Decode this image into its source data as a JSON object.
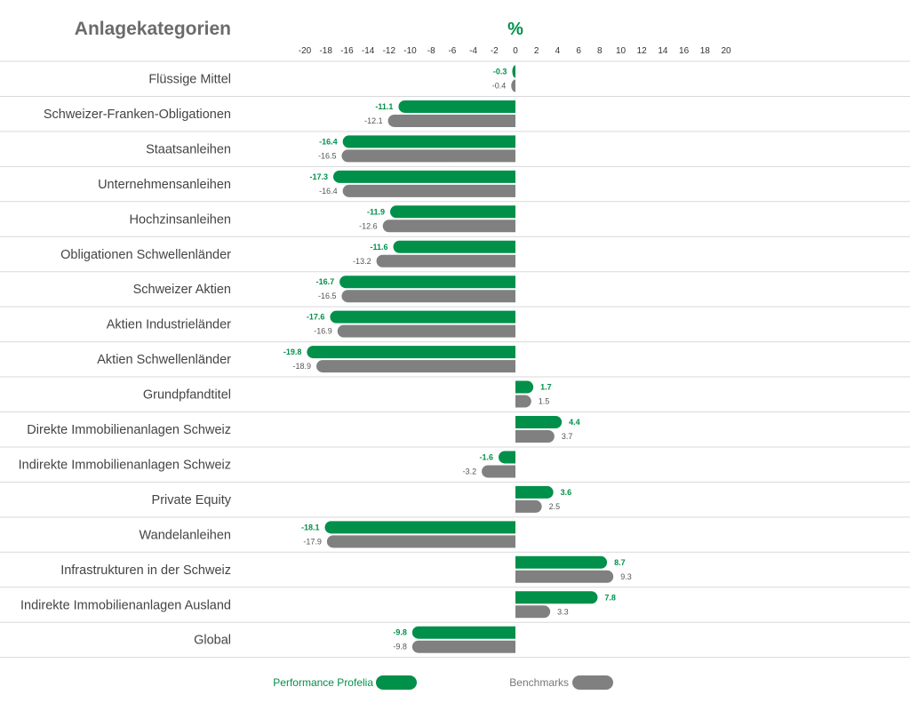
{
  "chart_data": {
    "type": "bar",
    "orientation": "horizontal",
    "title": "Anlagekategorien",
    "unit": "%",
    "xlim": [
      -20,
      20
    ],
    "xticks": [
      -20,
      -18,
      -16,
      -14,
      -12,
      -10,
      -8,
      -6,
      -4,
      -2,
      0,
      2,
      4,
      6,
      8,
      10,
      12,
      14,
      16,
      18,
      20
    ],
    "categories": [
      "Flüssige Mittel",
      "Schweizer-Franken-Obligationen",
      "Staatsanleihen",
      "Unternehmensanleihen",
      "Hochzinsanleihen",
      "Obligationen Schwellenländer",
      "Schweizer Aktien",
      "Aktien Industrieländer",
      "Aktien Schwellenländer",
      "Grundpfandtitel",
      "Direkte Immobilienanlagen Schweiz",
      "Indirekte Immobilienanlagen Schweiz",
      "Private Equity",
      "Wandelanleihen",
      "Infrastrukturen in der Schweiz",
      "Indirekte Immobilienanlagen Ausland",
      "Global"
    ],
    "series": [
      {
        "name": "Performance Profelia",
        "color": "#00904a",
        "values": [
          -0.3,
          -11.1,
          -16.4,
          -17.3,
          -11.9,
          -11.6,
          -16.7,
          -17.6,
          -19.8,
          1.7,
          4.4,
          -1.6,
          3.6,
          -18.1,
          8.7,
          7.8,
          -9.8
        ],
        "labels": [
          "-0.3",
          "-11.1",
          "-16.4",
          "-17.3",
          "-11.9",
          "-11.6",
          "-16.7",
          "-17.6",
          "-19.8",
          "1.7",
          "4.4",
          "-1.6",
          "3.6",
          "-18.1",
          "8.7",
          "7.8",
          "-9.8"
        ]
      },
      {
        "name": "Benchmarks",
        "color": "#808080",
        "values": [
          -0.4,
          -12.1,
          -16.5,
          -16.4,
          -12.6,
          -13.2,
          -16.5,
          -16.9,
          -18.9,
          1.5,
          3.7,
          -3.2,
          2.5,
          -17.9,
          9.3,
          3.3,
          -9.8
        ],
        "labels": [
          "-0.4",
          "-12.1",
          "-16.5",
          "-16.4",
          "-12.6",
          "-13.2",
          "-16.5",
          "-16.9",
          "-18.9",
          "1.5",
          "3.7",
          "-3.2",
          "2.5",
          "-17.9",
          "9.3",
          "3.3",
          "-9.8"
        ]
      }
    ],
    "legend_position": "bottom"
  }
}
